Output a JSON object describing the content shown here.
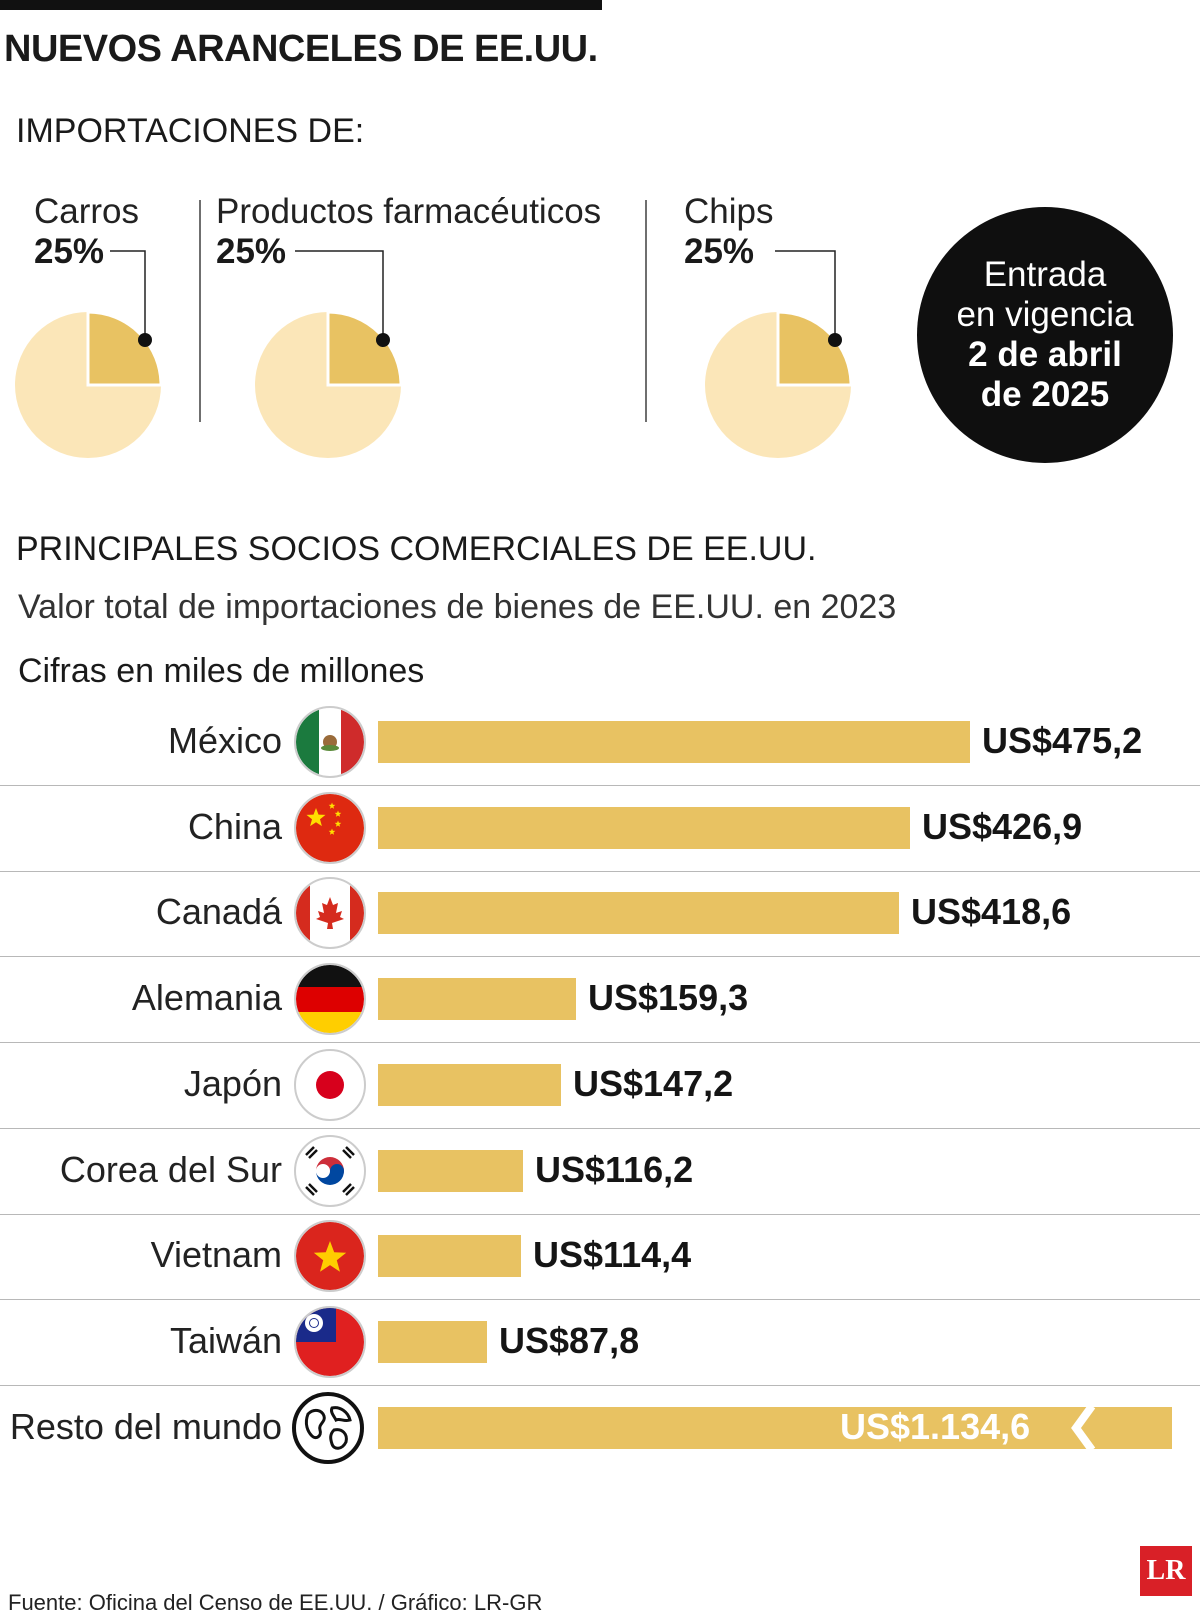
{
  "header": {
    "title": "NUEVOS ARANCELES DE EE.UU.",
    "imports_label": "IMPORTACIONES DE:"
  },
  "tariffs": [
    {
      "label": "Carros",
      "pct_text": "25%",
      "pct": 25
    },
    {
      "label": "Productos farmacéuticos",
      "pct_text": "25%",
      "pct": 25
    },
    {
      "label": "Chips",
      "pct_text": "25%",
      "pct": 25
    }
  ],
  "badge": {
    "line1": "Entrada",
    "line2": "en vigencia",
    "line3": "2 de abril",
    "line4": "de 2025"
  },
  "section": {
    "title": "PRINCIPALES SOCIOS COMERCIALES DE EE.UU.",
    "subtitle": "Valor total de importaciones de bienes de EE.UU. en 2023",
    "units": "Cifras en miles de millones"
  },
  "chart_data": {
    "type": "bar",
    "orientation": "horizontal",
    "title": "PRINCIPALES SOCIOS COMERCIALES DE EE.UU.",
    "subtitle": "Valor total de importaciones de bienes de EE.UU. en 2023",
    "unit": "Cifras en miles de millones",
    "categories": [
      "México",
      "China",
      "Canadá",
      "Alemania",
      "Japón",
      "Corea del Sur",
      "Vietnam",
      "Taiwán",
      "Resto del mundo"
    ],
    "values": [
      475.2,
      426.9,
      418.6,
      159.3,
      147.2,
      116.2,
      114.4,
      87.8,
      1134.6
    ],
    "labels": [
      "US$475,2",
      "US$426,9",
      "US$418,6",
      "US$159,3",
      "US$147,2",
      "US$116,2",
      "US$114,4",
      "US$87,8",
      "US$1.134,6"
    ],
    "flags": [
      "mexico-flag-icon",
      "china-flag-icon",
      "canada-flag-icon",
      "germany-flag-icon",
      "japan-flag-icon",
      "south-korea-flag-icon",
      "vietnam-flag-icon",
      "taiwan-flag-icon",
      "globe-icon"
    ],
    "truncated_last_bar": true
  },
  "footer": {
    "source": "Fuente: Oficina del Censo de EE.UU. / Gráfico: LR-GR",
    "logo": "LR"
  },
  "colors": {
    "bar": "#e8c262",
    "pie_light": "#fbe6b8",
    "pie_slice": "#e8c262",
    "badge": "#0f0f0f"
  }
}
